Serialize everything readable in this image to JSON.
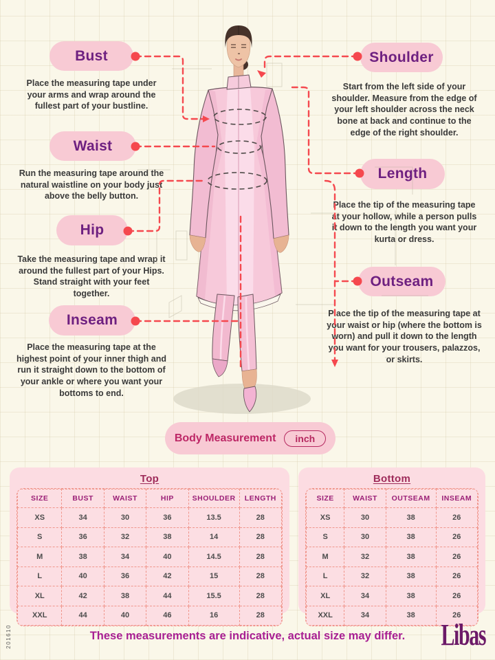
{
  "labels": {
    "bust": {
      "title": "Bust",
      "desc": "Place the measuring tape under your arms and wrap around the fullest part of your bustline."
    },
    "waist": {
      "title": "Waist",
      "desc": "Run the measuring tape around the natural waistline on your body just above the belly button."
    },
    "hip": {
      "title": "Hip",
      "desc": "Take the measuring tape and wrap it around the fullest part of your Hips. Stand straight with your feet together."
    },
    "inseam": {
      "title": "Inseam",
      "desc": "Place the measuring tape at the highest point of your inner thigh and run it straight down to the bottom of your ankle or where you want your bottoms to end."
    },
    "shoulder": {
      "title": "Shoulder",
      "desc": "Start from the left side of your shoulder. Measure from the edge of your left shoulder across the neck bone at back and continue to the edge of the right shoulder."
    },
    "length": {
      "title": "Length",
      "desc": "Place the tip of the measuring tape at your hollow, while a person pulls it down to the length you want your kurta or dress."
    },
    "outseam": {
      "title": "Outseam",
      "desc": "Place the tip of the measuring tape at your waist or hip (where the bottom is worn) and pull it down to the length you want for your trousers, palazzos, or skirts."
    }
  },
  "measurement_bar": {
    "label": "Body Measurement",
    "unit": "inch"
  },
  "tables": {
    "top": {
      "title": "Top",
      "columns": [
        "SIZE",
        "BUST",
        "WAIST",
        "HIP",
        "SHOULDER",
        "LENGTH"
      ],
      "rows": [
        [
          "XS",
          "34",
          "30",
          "36",
          "13.5",
          "28"
        ],
        [
          "S",
          "36",
          "32",
          "38",
          "14",
          "28"
        ],
        [
          "M",
          "38",
          "34",
          "40",
          "14.5",
          "28"
        ],
        [
          "L",
          "40",
          "36",
          "42",
          "15",
          "28"
        ],
        [
          "XL",
          "42",
          "38",
          "44",
          "15.5",
          "28"
        ],
        [
          "XXL",
          "44",
          "40",
          "46",
          "16",
          "28"
        ]
      ]
    },
    "bottom": {
      "title": "Bottom",
      "columns": [
        "SIZE",
        "WAIST",
        "OUTSEAM",
        "INSEAM"
      ],
      "rows": [
        [
          "XS",
          "30",
          "38",
          "26"
        ],
        [
          "S",
          "30",
          "38",
          "26"
        ],
        [
          "M",
          "32",
          "38",
          "26"
        ],
        [
          "L",
          "32",
          "38",
          "26"
        ],
        [
          "XL",
          "34",
          "38",
          "26"
        ],
        [
          "XXL",
          "34",
          "38",
          "26"
        ]
      ]
    }
  },
  "footer": {
    "note": "These measurements are indicative, actual size may differ.",
    "brand": "Libas"
  },
  "side_code": "201610",
  "colors": {
    "accent_red": "#f5484e",
    "pill_pink": "#f8cad4",
    "pill_text_purple": "#6e2080",
    "panel_pink": "#fcdce2",
    "table_dash": "#f0968c",
    "header_magenta": "#9b2077",
    "footer_magenta": "#a81f93",
    "brand_purple": "#6c1a68"
  }
}
